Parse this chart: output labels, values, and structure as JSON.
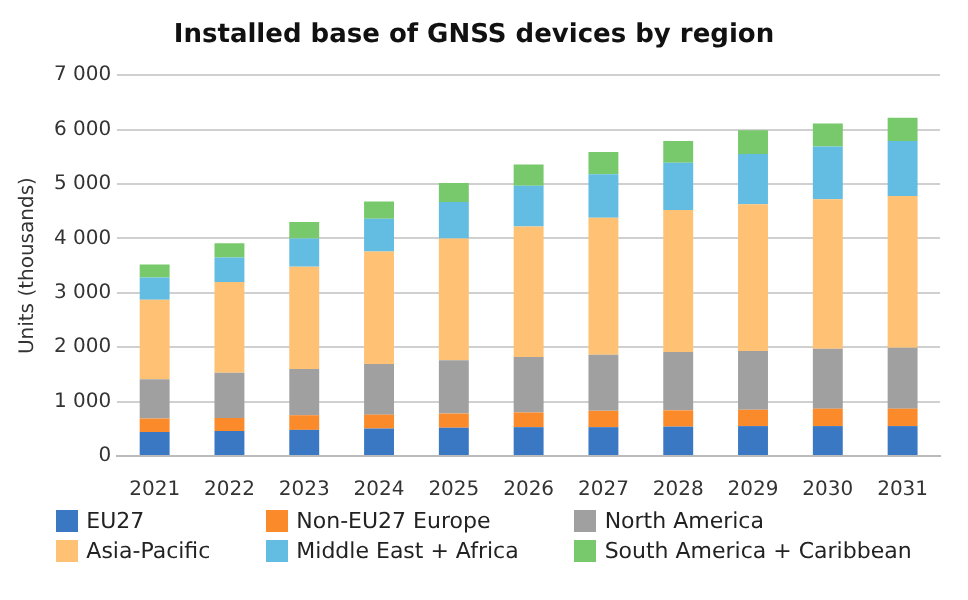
{
  "chart_data": {
    "type": "bar",
    "title": "Installed base of GNSS devices by region",
    "ylabel": "Units (thousands)",
    "stacked": true,
    "grid": "y",
    "legend": "bottom",
    "categories": [
      "2021",
      "2022",
      "2023",
      "2024",
      "2025",
      "2026",
      "2027",
      "2028",
      "2029",
      "2030",
      "2031"
    ],
    "ylim": [
      0,
      7000
    ],
    "yticks": [
      {
        "value": 0,
        "label": "0"
      },
      {
        "value": 1000,
        "label": "1 000"
      },
      {
        "value": 2000,
        "label": "2 000"
      },
      {
        "value": 3000,
        "label": "3 000"
      },
      {
        "value": 4000,
        "label": "4 000"
      },
      {
        "value": 5000,
        "label": "5 000"
      },
      {
        "value": 6000,
        "label": "6 000"
      },
      {
        "value": 7000,
        "label": "7 000"
      }
    ],
    "series": [
      {
        "name": "EU27",
        "color": "#3a78c3",
        "values": [
          440,
          460,
          480,
          505,
          520,
          530,
          530,
          540,
          550,
          550,
          550
        ]
      },
      {
        "name": "Non-EU27 Europe",
        "color": "#fb8a2a",
        "values": [
          250,
          240,
          270,
          255,
          260,
          270,
          300,
          300,
          300,
          320,
          320
        ]
      },
      {
        "name": "North America",
        "color": "#a0a0a0",
        "values": [
          720,
          830,
          850,
          930,
          980,
          1020,
          1030,
          1070,
          1080,
          1100,
          1120
        ]
      },
      {
        "name": "Asia-Pacific",
        "color": "#ffc174",
        "values": [
          1460,
          1670,
          1880,
          2070,
          2240,
          2400,
          2520,
          2610,
          2700,
          2750,
          2790
        ]
      },
      {
        "name": "Middle East + Africa",
        "color": "#63bde3",
        "values": [
          410,
          450,
          520,
          600,
          670,
          750,
          800,
          870,
          920,
          970,
          1010
        ]
      },
      {
        "name": "South America + Caribbean",
        "color": "#78c96b",
        "values": [
          240,
          260,
          300,
          320,
          350,
          390,
          410,
          400,
          440,
          420,
          430
        ]
      }
    ]
  }
}
